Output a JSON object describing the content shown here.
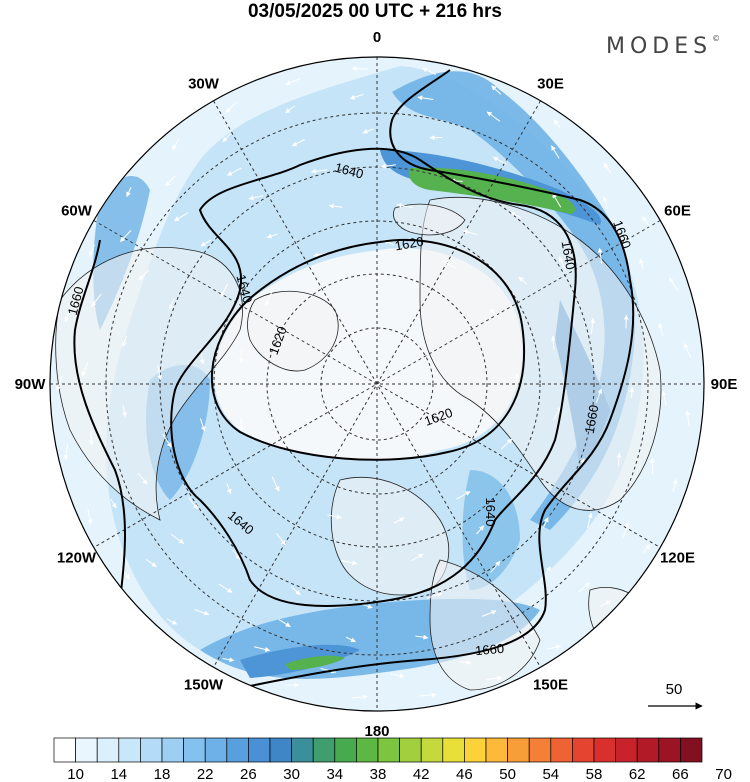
{
  "title": "03/05/2025  00 UTC  + 216 hrs",
  "brand": "MODES",
  "brand_mark": "©",
  "longitude_labels": [
    {
      "text": "180",
      "lon": 180
    },
    {
      "text": "150E",
      "lon": 150
    },
    {
      "text": "120E",
      "lon": 120
    },
    {
      "text": "90E",
      "lon": 90
    },
    {
      "text": "60E",
      "lon": 60
    },
    {
      "text": "30E",
      "lon": 30
    },
    {
      "text": "0",
      "lon": 0
    },
    {
      "text": "30W",
      "lon": -30
    },
    {
      "text": "60W",
      "lon": -60
    },
    {
      "text": "90W",
      "lon": -90
    },
    {
      "text": "120W",
      "lon": -120
    },
    {
      "text": "150W",
      "lon": -150
    }
  ],
  "contour_labels": [
    "1620",
    "1620",
    "1620",
    "1640",
    "1640",
    "1640",
    "1640",
    "1640",
    "1660",
    "1660",
    "1660",
    "1660"
  ],
  "wind_reference": {
    "label": "50",
    "value": 50
  },
  "colorbar": {
    "tick_labels": [
      "10",
      "14",
      "18",
      "22",
      "26",
      "30",
      "34",
      "38",
      "42",
      "46",
      "50",
      "54",
      "58",
      "62",
      "66",
      "70"
    ],
    "colors": [
      "#ffffff",
      "#eaf6fd",
      "#dbeffc",
      "#c9e7fb",
      "#b4dcf8",
      "#9dcff4",
      "#85c1ef",
      "#6db1e8",
      "#589fde",
      "#4a90d4",
      "#3f86c7",
      "#3a8f9a",
      "#3f9d6e",
      "#47aa4e",
      "#5cb743",
      "#7dc43f",
      "#a2cf3e",
      "#c6d93c",
      "#e8df39",
      "#fbd23a",
      "#fcb93a",
      "#f99d38",
      "#f47f36",
      "#ee6233",
      "#e54530",
      "#d9302e",
      "#c8232b",
      "#b21a28",
      "#9a1424",
      "#831020"
    ]
  }
}
